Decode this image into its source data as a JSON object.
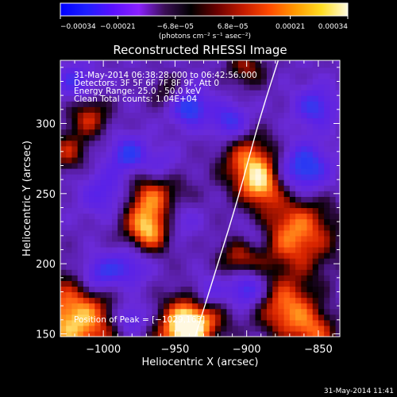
{
  "chart_data": {
    "type": "heatmap",
    "title": "Reconstructed RHESSI Image",
    "xlabel": "Heliocentric X (arcsec)",
    "ylabel": "Heliocentric Y (arcsec)",
    "xlim": [
      -1030,
      -835
    ],
    "ylim": [
      148,
      345
    ],
    "x_ticks": [
      -1000,
      -950,
      -900,
      -850
    ],
    "x_tick_labels": [
      "−1000",
      "−950",
      "−900",
      "−850"
    ],
    "y_ticks": [
      150,
      200,
      250,
      300
    ],
    "y_tick_labels": [
      "150",
      "200",
      "250",
      "300"
    ],
    "colorbar": {
      "range": [
        -0.00034,
        0.00034
      ],
      "tick_labels": [
        "−0.00034",
        "−0.00021",
        "−6.8e−05",
        "6.8e−05",
        "0.00021",
        "0.00034"
      ],
      "unit_label": "(photons cm⁻² s⁻¹ asec⁻²)",
      "colors": [
        "#0000ff",
        "#1e1eff",
        "#5a10ff",
        "#8a20ff",
        "#3a0f55",
        "#000000",
        "#6b0000",
        "#c41b00",
        "#ff4a00",
        "#ff9a00",
        "#ffdd22",
        "#fffbe0"
      ]
    },
    "annotations": [
      "31-May-2014 06:38:28.000 to 06:42:56.000",
      "Detectors: 3F 5F 6F 7F 8F 9F, Att 0",
      "Energy Range: 25.0 - 50.0 keV",
      "Clean    Total counts: 1.04E+04"
    ],
    "peak_text": "Position of Peak = [−1029,163]",
    "limb_curve": [
      [
        -936,
        148
      ],
      [
        -920,
        200
      ],
      [
        -905,
        250
      ],
      [
        -892,
        300
      ],
      [
        -878,
        345
      ]
    ],
    "blobs": [
      {
        "x": -1020,
        "y": 160,
        "v": 1.0,
        "s": 22
      },
      {
        "x": -1025,
        "y": 280,
        "v": 0.55,
        "s": 10
      },
      {
        "x": -1010,
        "y": 305,
        "v": 0.6,
        "s": 10
      },
      {
        "x": -968,
        "y": 243,
        "v": 0.9,
        "s": 17
      },
      {
        "x": -968,
        "y": 222,
        "v": 0.6,
        "s": 10
      },
      {
        "x": -935,
        "y": 163,
        "v": 0.9,
        "s": 14
      },
      {
        "x": -946,
        "y": 150,
        "v": 0.8,
        "s": 12
      },
      {
        "x": -897,
        "y": 272,
        "v": 0.85,
        "s": 14
      },
      {
        "x": -890,
        "y": 255,
        "v": 0.6,
        "s": 10
      },
      {
        "x": -866,
        "y": 222,
        "v": 0.85,
        "s": 20
      },
      {
        "x": -872,
        "y": 168,
        "v": 0.8,
        "s": 15
      },
      {
        "x": -852,
        "y": 150,
        "v": 0.6,
        "s": 11
      },
      {
        "x": -905,
        "y": 205,
        "v": 0.55,
        "s": 10
      },
      {
        "x": -900,
        "y": 340,
        "v": 0.5,
        "s": 10
      },
      {
        "x": -955,
        "y": 323,
        "v": 0.35,
        "s": 9
      },
      {
        "x": -995,
        "y": 250,
        "v": -0.6,
        "s": 13
      },
      {
        "x": -1003,
        "y": 192,
        "v": -0.7,
        "s": 10
      },
      {
        "x": -982,
        "y": 278,
        "v": -0.7,
        "s": 9
      },
      {
        "x": -940,
        "y": 312,
        "v": -0.8,
        "s": 9
      },
      {
        "x": -912,
        "y": 302,
        "v": -0.6,
        "s": 9
      },
      {
        "x": -860,
        "y": 268,
        "v": -0.85,
        "s": 12
      },
      {
        "x": -948,
        "y": 232,
        "v": -0.5,
        "s": 10
      },
      {
        "x": -928,
        "y": 178,
        "v": -0.6,
        "s": 9
      },
      {
        "x": -900,
        "y": 182,
        "v": -0.7,
        "s": 9
      },
      {
        "x": -982,
        "y": 198,
        "v": -0.5,
        "s": 10
      },
      {
        "x": -982,
        "y": 162,
        "v": -0.55,
        "s": 9
      },
      {
        "x": -852,
        "y": 312,
        "v": -0.6,
        "s": 10
      },
      {
        "x": -895,
        "y": 220,
        "v": -0.4,
        "s": 9
      },
      {
        "x": -1020,
        "y": 330,
        "v": -0.5,
        "s": 9
      },
      {
        "x": -960,
        "y": 270,
        "v": -0.4,
        "s": 9
      }
    ]
  },
  "footer": {
    "timestamp": "31-May-2014 11:41"
  }
}
